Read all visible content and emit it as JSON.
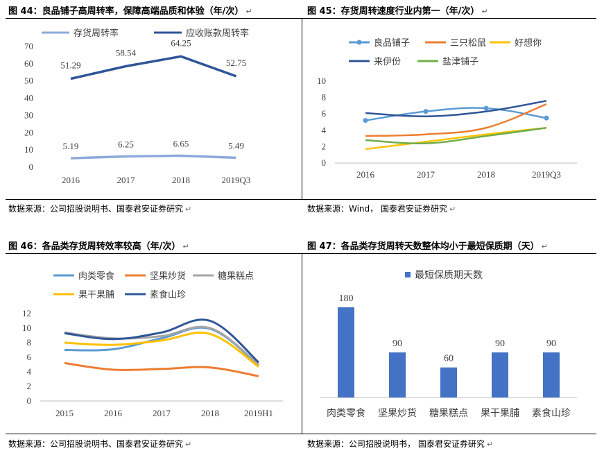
{
  "paragraph_mark": "↵",
  "fig44": {
    "title": "图 44：良品铺子高周转率，保障高端品质和体验（年/次）",
    "source": "数据来源：公司招股说明书、国泰君安证券研究",
    "chart_data": {
      "type": "line",
      "title": "",
      "categories": [
        "2016",
        "2017",
        "2018",
        "2019Q3"
      ],
      "ylim": [
        0,
        70
      ],
      "yticks": [
        0,
        10,
        20,
        30,
        40,
        50,
        60,
        70
      ],
      "legend_position": "top",
      "series": [
        {
          "name": "存货周转率",
          "values": [
            5.19,
            6.25,
            6.65,
            5.49
          ],
          "color": "#8EA9DB"
        },
        {
          "name": "应收账款周转率",
          "values": [
            51.29,
            58.54,
            64.25,
            52.75
          ],
          "color": "#2F5597"
        }
      ]
    }
  },
  "fig45": {
    "title": "图 45：存货周转速度行业内第一（年/次）",
    "source": "数据来源：Wind， 国泰君安证券研究",
    "chart_data": {
      "type": "line",
      "title": "",
      "categories": [
        "2016",
        "2017",
        "2018",
        "2019Q3"
      ],
      "ylim": [
        0,
        10
      ],
      "yticks": [
        0,
        2,
        4,
        6,
        8,
        10
      ],
      "legend_position": "top",
      "series": [
        {
          "name": "良品铺子",
          "values": [
            5.2,
            6.3,
            6.7,
            5.5
          ],
          "color": "#5B9BD5",
          "markers": true
        },
        {
          "name": "三只松鼠",
          "values": [
            3.3,
            3.5,
            4.3,
            7.2
          ],
          "color": "#ED7D31"
        },
        {
          "name": "好想你",
          "values": [
            1.7,
            2.6,
            3.5,
            4.3
          ],
          "color": "#FFC000"
        },
        {
          "name": "来伊份",
          "values": [
            6.1,
            5.7,
            6.3,
            7.6
          ],
          "color": "#2F5597"
        },
        {
          "name": "盐津铺子",
          "values": [
            2.8,
            2.4,
            3.3,
            4.3
          ],
          "color": "#70AD47"
        }
      ]
    }
  },
  "fig46": {
    "title": "图 46：各品类存货周转效率较高（年/次）",
    "source": "数据来源：公司招股说明书、国泰君安证券研究",
    "chart_data": {
      "type": "line",
      "title": "",
      "categories": [
        "2015",
        "2016",
        "2017",
        "2018",
        "2019H1"
      ],
      "ylim": [
        0,
        12
      ],
      "yticks": [
        0,
        2,
        4,
        6,
        8,
        10,
        12
      ],
      "legend_position": "top",
      "series": [
        {
          "name": "肉类零食",
          "values": [
            7.0,
            7.1,
            8.6,
            9.9,
            4.9
          ],
          "color": "#5B9BD5"
        },
        {
          "name": "坚果炒货",
          "values": [
            5.2,
            4.3,
            4.4,
            4.6,
            3.4
          ],
          "color": "#ED7D31"
        },
        {
          "name": "糖果糕点",
          "values": [
            9.4,
            8.6,
            8.9,
            10.0,
            5.0
          ],
          "color": "#A5A5A5"
        },
        {
          "name": "果干果脯",
          "values": [
            8.0,
            7.7,
            8.3,
            9.2,
            4.7
          ],
          "color": "#FFC000"
        },
        {
          "name": "素食山珍",
          "values": [
            9.3,
            8.5,
            9.4,
            11.0,
            5.3
          ],
          "color": "#2F5597"
        }
      ]
    }
  },
  "fig47": {
    "title": "图 47：各品类存货周转天数整体均小于最短保质期（天）",
    "source": "数据来源：公司招股说明书， 国泰君安证券研究",
    "chart_data": {
      "type": "bar",
      "title": "",
      "categories": [
        "肉类零食",
        "坚果炒货",
        "糖果糕点",
        "果干果脯",
        "素食山珍"
      ],
      "legend_position": "top",
      "series": [
        {
          "name": "最短保质期天数",
          "values": [
            180,
            90,
            60,
            90,
            90
          ],
          "color": "#4472C4"
        }
      ],
      "data_labels": [
        "180",
        "90",
        "60",
        "90",
        "90"
      ],
      "ylim": [
        0,
        200
      ]
    }
  }
}
